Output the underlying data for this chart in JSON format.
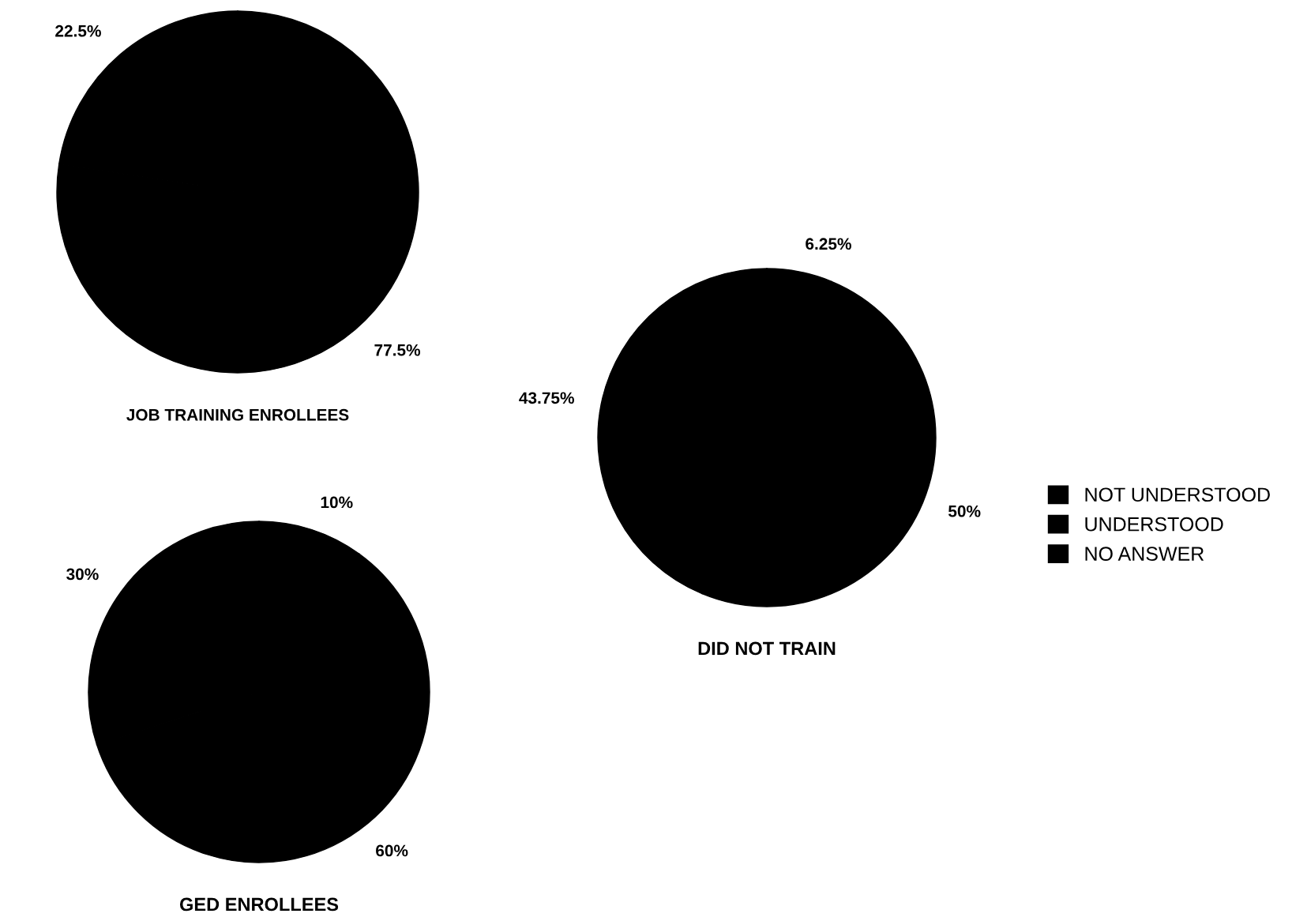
{
  "chart_data": [
    {
      "type": "pie",
      "title": "JOB TRAINING ENROLLEES",
      "categories": [
        "NOT UNDERSTOOD",
        "UNDERSTOOD",
        "NO ANSWER"
      ],
      "values": [
        22.5,
        77.5,
        0
      ],
      "value_labels": [
        "22.5%",
        "77.5%",
        null
      ],
      "colors": [
        "#000000",
        "#000000",
        "#000000"
      ],
      "legend": "right"
    },
    {
      "type": "pie",
      "title": "GED ENROLLEES",
      "categories": [
        null,
        null,
        null
      ],
      "values": [
        30,
        60,
        10
      ],
      "value_labels": [
        "30%",
        "60%",
        "10%"
      ],
      "colors": [
        "#000000",
        "#000000",
        "#000000"
      ]
    },
    {
      "type": "pie",
      "title": "DID NOT TRAIN",
      "categories": [
        null,
        null,
        null
      ],
      "values": [
        43.75,
        50,
        6.25
      ],
      "value_labels": [
        "43.75%",
        "50%",
        "6.25%"
      ],
      "colors": [
        "#000000",
        "#000000",
        "#000000"
      ]
    }
  ]
}
